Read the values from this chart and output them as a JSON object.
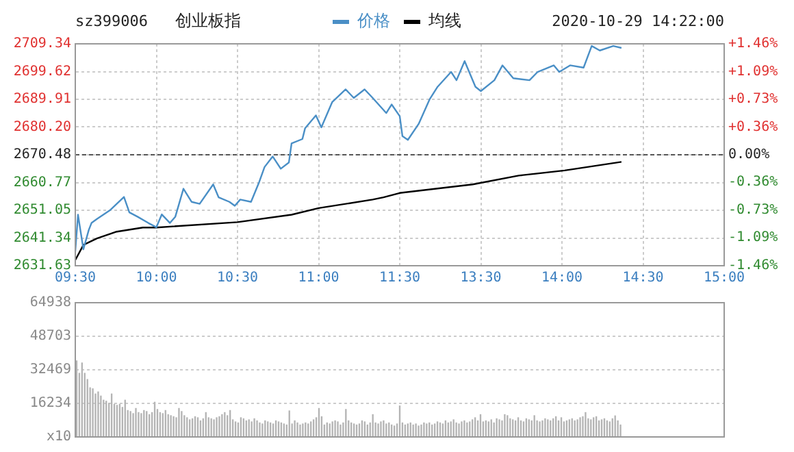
{
  "chart_data": [
    {
      "type": "line",
      "title": "创业板指",
      "subtitle": "sz399006",
      "annotations": [
        "2020-10-29 14:22:00"
      ],
      "legend": "top",
      "grid": true,
      "categories": [
        "09:30",
        null,
        null,
        null,
        null,
        null,
        null,
        null,
        null,
        null,
        null,
        null,
        null,
        null,
        null,
        null,
        null,
        null,
        null,
        null,
        null,
        null,
        null,
        null,
        null,
        null,
        null,
        null,
        null,
        null,
        "10:00",
        null,
        null,
        null,
        null,
        null,
        null,
        null,
        null,
        null,
        null,
        null,
        null,
        null,
        null,
        null,
        null,
        null,
        null,
        null,
        null,
        null,
        null,
        null,
        null,
        null,
        null,
        null,
        null,
        null,
        "10:30",
        null,
        null,
        null,
        null,
        null,
        null,
        null,
        null,
        null,
        null,
        null,
        null,
        null,
        null,
        null,
        null,
        null,
        null,
        null,
        null,
        null,
        null,
        null,
        null,
        null,
        null,
        null,
        null,
        null,
        "11:00",
        null,
        null,
        null,
        null,
        null,
        null,
        null,
        null,
        null,
        null,
        null,
        null,
        null,
        null,
        null,
        null,
        null,
        null,
        null,
        null,
        null,
        null,
        null,
        null,
        null,
        null,
        null,
        null,
        null,
        "11:30",
        null,
        null,
        null,
        null,
        null,
        null,
        null,
        null,
        null,
        null,
        null,
        null,
        null,
        null,
        null,
        null,
        null,
        null,
        null,
        null,
        null,
        null,
        null,
        null,
        null,
        null,
        null,
        null,
        null,
        "13:30",
        null,
        null,
        null,
        null,
        null,
        null,
        null,
        null,
        null,
        null,
        null,
        null,
        null,
        null,
        null,
        null,
        null,
        null,
        null,
        null,
        null,
        null,
        null,
        null,
        null,
        null,
        null,
        null,
        null,
        "14:00",
        null,
        null,
        null,
        null,
        null,
        null,
        null,
        null,
        null,
        null,
        null,
        null,
        null,
        null,
        null,
        null,
        null,
        null,
        null,
        null,
        null,
        null,
        null,
        null,
        null,
        null,
        null,
        null,
        null,
        "14:30",
        null,
        null,
        null,
        null,
        null,
        null,
        null,
        null,
        null,
        null,
        null,
        null,
        null,
        null,
        null,
        null,
        null,
        null,
        null,
        null,
        null,
        null,
        null,
        null,
        null,
        null,
        null,
        null,
        null,
        "15:00"
      ],
      "ylim": [
        2631.63,
        2709.34
      ],
      "yticks": [
        2631.63,
        2641.34,
        2651.05,
        2660.77,
        2670.48,
        {
          "value": 2680.2,
          "label": "2680.20"
        },
        2689.91,
        2699.62,
        2709.34
      ],
      "y2lim": [
        -1.46,
        1.46
      ],
      "y2ticks": [
        {
          "value": -1.46,
          "label": "-1.46%"
        },
        {
          "value": -1.09,
          "label": "-1.09%"
        },
        {
          "value": -0.73,
          "label": "-0.73%"
        },
        {
          "value": -0.36,
          "label": "-0.36%"
        },
        {
          "value": 0,
          "label": "0.00%"
        },
        {
          "value": 0.36,
          "label": "+0.36%"
        },
        {
          "value": 0.73,
          "label": "+0.73%"
        },
        {
          "value": 1.09,
          "label": "+1.09%"
        },
        {
          "value": 1.46,
          "label": "+1.46%"
        }
      ],
      "ref_lines": [
        {
          "axis": "y",
          "value": 2670.48,
          "line_style": "dashed",
          "color": "#555555"
        }
      ],
      "series": [
        {
          "name": "价格",
          "color": "#4a8fc6",
          "values": [
            2636.6,
            2649.5,
            2643.4,
            2637.4,
            null,
            2644.2,
            2646.6,
            null,
            2648.0,
            null,
            null,
            null,
            null,
            2651.2,
            null,
            null,
            null,
            null,
            2655.7,
            null,
            2650.3,
            null,
            null,
            2648.8,
            null,
            null,
            null,
            2646.6,
            null,
            null,
            2645.1,
            null,
            2649.6,
            null,
            null,
            2646.6,
            null,
            2648.8,
            null,
            null,
            2658.6,
            null,
            null,
            2654.0,
            null,
            null,
            2653.3,
            null,
            null,
            null,
            null,
            2660.1,
            null,
            2655.6,
            null,
            null,
            null,
            2654.0,
            null,
            2652.6,
            null,
            2654.8,
            null,
            null,
            null,
            2654.0,
            null,
            null,
            2660.9,
            null,
            2666.2,
            null,
            null,
            2669.9,
            null,
            null,
            2665.6,
            null,
            null,
            2667.8,
            2674.5,
            null,
            null,
            null,
            2676.0,
            2679.8,
            null,
            null,
            null,
            2684.3,
            null,
            2680.1,
            null,
            null,
            null,
            2688.9,
            null,
            null,
            null,
            null,
            2693.4,
            null,
            null,
            2690.4,
            null,
            null,
            null,
            2693.4,
            null,
            null,
            2690.4,
            null,
            null,
            null,
            null,
            2685.1,
            null,
            2688.1,
            null,
            null,
            2684.0,
            2677.0,
            null,
            2675.7,
            null,
            null,
            null,
            2681.3,
            null,
            null,
            null,
            2689.8,
            null,
            null,
            2694.3,
            null,
            null,
            null,
            null,
            2699.5,
            null,
            2696.6,
            null,
            null,
            2703.3,
            null,
            null,
            null,
            2694.3,
            null,
            2692.8,
            null,
            null,
            null,
            null,
            2696.6,
            null,
            null,
            2701.8,
            null,
            null,
            null,
            2697.3,
            null,
            null,
            null,
            null,
            null,
            2696.6,
            null,
            null,
            2699.5,
            null,
            null,
            null,
            null,
            null,
            2701.8,
            null,
            2699.5,
            null,
            null,
            null,
            2701.8,
            null,
            null,
            null,
            null,
            2701.0,
            null,
            null,
            2708.6,
            null,
            null,
            2707.0,
            null,
            null,
            null,
            null,
            2708.6,
            null,
            null,
            2707.9,
            null,
            null,
            null,
            null,
            null,
            null,
            null,
            null,
            null,
            null,
            null,
            null,
            null,
            null,
            null,
            null,
            null,
            null,
            null,
            null,
            null,
            null,
            null,
            null,
            null,
            null,
            null,
            null,
            null,
            null,
            null,
            null,
            null,
            null,
            null,
            null,
            null,
            null
          ]
        },
        {
          "name": "均线",
          "color": "#000000",
          "values": [
            2633.6,
            null,
            null,
            2638.9,
            null,
            null,
            null,
            null,
            2641.2,
            null,
            null,
            null,
            null,
            null,
            null,
            2643.5,
            null,
            null,
            null,
            null,
            null,
            null,
            null,
            null,
            null,
            2645.0,
            null,
            null,
            null,
            null,
            2645.0,
            null,
            null,
            null,
            null,
            null,
            null,
            null,
            null,
            null,
            null,
            null,
            null,
            null,
            null,
            null,
            null,
            null,
            null,
            null,
            null,
            null,
            null,
            null,
            null,
            null,
            null,
            null,
            null,
            null,
            2646.9,
            null,
            null,
            null,
            null,
            null,
            null,
            null,
            null,
            null,
            null,
            null,
            null,
            null,
            null,
            null,
            null,
            null,
            null,
            null,
            2649.5,
            null,
            null,
            null,
            null,
            null,
            null,
            null,
            null,
            null,
            2651.8,
            null,
            null,
            null,
            null,
            null,
            null,
            null,
            null,
            null,
            null,
            null,
            null,
            null,
            null,
            null,
            null,
            null,
            null,
            null,
            2654.8,
            null,
            null,
            null,
            2655.6,
            null,
            null,
            null,
            null,
            null,
            2657.1,
            null,
            null,
            null,
            null,
            null,
            null,
            null,
            null,
            null,
            null,
            null,
            null,
            null,
            null,
            null,
            null,
            null,
            null,
            null,
            null,
            null,
            null,
            null,
            null,
            null,
            null,
            2660.1,
            null,
            null,
            null,
            null,
            null,
            null,
            null,
            null,
            null,
            null,
            null,
            null,
            null,
            null,
            null,
            null,
            2663.2,
            null,
            null,
            null,
            null,
            null,
            null,
            null,
            null,
            null,
            null,
            null,
            null,
            null,
            null,
            null,
            null,
            2665.0,
            null,
            null,
            null,
            null,
            null,
            null,
            null,
            null,
            null,
            null,
            null,
            null,
            null,
            null,
            null,
            null,
            null,
            null,
            null,
            null,
            2668.0,
            null,
            null,
            null,
            null,
            null,
            null,
            null,
            null,
            null,
            null,
            null,
            null,
            null,
            null,
            null,
            null,
            null,
            null,
            null,
            null,
            null,
            null,
            null,
            null,
            null,
            null,
            null,
            null,
            null,
            null,
            null,
            null,
            null,
            null,
            null,
            null,
            null,
            null
          ]
        }
      ]
    },
    {
      "type": "bar",
      "grid": "y",
      "tick_labels": "y",
      "categories": [
        null,
        null,
        null,
        null,
        null,
        null,
        null,
        null,
        null,
        null,
        null,
        null,
        null,
        null,
        null,
        null,
        null,
        null,
        null,
        null,
        null,
        null,
        null,
        null,
        null,
        null,
        null,
        null,
        null,
        null,
        null,
        null,
        null,
        null,
        null,
        null,
        null,
        null,
        null,
        null,
        null,
        null,
        null,
        null,
        null,
        null,
        null,
        null,
        null,
        null,
        null,
        null,
        null,
        null,
        null,
        null,
        null,
        null,
        null,
        null,
        null,
        null,
        null,
        null,
        null,
        null,
        null,
        null,
        null,
        null,
        null,
        null,
        null,
        null,
        null,
        null,
        null,
        null,
        null,
        null,
        null,
        null,
        null,
        null,
        null,
        null,
        null,
        null,
        null,
        null,
        null,
        null,
        null,
        null,
        null,
        null,
        null,
        null,
        null,
        null,
        null,
        null,
        null,
        null,
        null,
        null,
        null,
        null,
        null,
        null,
        null,
        null,
        null,
        null,
        null,
        null,
        null,
        null,
        null,
        null,
        null,
        null,
        null,
        null,
        null,
        null,
        null,
        null,
        null,
        null,
        null,
        null,
        null,
        null,
        null,
        null,
        null,
        null,
        null,
        null,
        null,
        null,
        null,
        null,
        null,
        null,
        null,
        null,
        null,
        null,
        null,
        null,
        null,
        null,
        null,
        null,
        null,
        null,
        null,
        null,
        null,
        null,
        null,
        null,
        null,
        null,
        null,
        null,
        null,
        null,
        null,
        null,
        null,
        null,
        null,
        null,
        null,
        null,
        null,
        null,
        null,
        null,
        null,
        null,
        null,
        null,
        null,
        null,
        null,
        null,
        null,
        null,
        null,
        null,
        null,
        null,
        null,
        null,
        null,
        null,
        null,
        null,
        null,
        null,
        null,
        null,
        null,
        null,
        null,
        null,
        null,
        null,
        null,
        null,
        null,
        null,
        null,
        null,
        null,
        null,
        null,
        null,
        null,
        null,
        null,
        null,
        null,
        null,
        null,
        null,
        null,
        null,
        null,
        null,
        null,
        null,
        null,
        null,
        null,
        null,
        null
      ],
      "ylim": [
        0,
        64938
      ],
      "yticks": [
        {
          "value": 0,
          "label": "x10"
        },
        16234,
        32469,
        48703,
        64938
      ],
      "series": [
        {
          "color": "#b4b4b4",
          "values": [
            37000,
            31000,
            36000,
            31000,
            28000,
            24000,
            23500,
            21000,
            22000,
            20000,
            18000,
            17500,
            16500,
            21000,
            16000,
            15500,
            16000,
            14500,
            18000,
            13000,
            12500,
            11500,
            14000,
            12000,
            11500,
            13000,
            12500,
            11000,
            12000,
            17000,
            13500,
            12000,
            11500,
            13000,
            11000,
            10500,
            10000,
            9500,
            14000,
            12500,
            10500,
            9500,
            8500,
            9000,
            10000,
            9500,
            8000,
            9000,
            12000,
            9500,
            9000,
            8500,
            9500,
            10000,
            11000,
            12000,
            10500,
            13000,
            8500,
            7500,
            7000,
            9500,
            9000,
            8000,
            8500,
            7500,
            9000,
            8000,
            7000,
            6500,
            8000,
            7500,
            7000,
            6500,
            8000,
            7500,
            7000,
            6500,
            6000,
            12800,
            6500,
            8000,
            7000,
            6000,
            6500,
            7000,
            6500,
            7500,
            8500,
            9500,
            14000,
            10000,
            6000,
            7000,
            6500,
            7500,
            8000,
            7500,
            6000,
            7000,
            13500,
            8000,
            7000,
            6500,
            6000,
            6500,
            8000,
            7500,
            6000,
            7000,
            11000,
            7000,
            6500,
            7500,
            8000,
            6500,
            7000,
            6000,
            5500,
            6500,
            15200,
            7000,
            6000,
            6500,
            7000,
            6000,
            6500,
            5500,
            6000,
            7000,
            6500,
            7000,
            6000,
            6500,
            7500,
            7000,
            6500,
            8000,
            7000,
            7500,
            8500,
            7000,
            6500,
            7500,
            8000,
            7000,
            7500,
            8500,
            9500,
            8000,
            11000,
            7500,
            8000,
            7500,
            8500,
            7000,
            9000,
            8500,
            8000,
            11000,
            10500,
            9000,
            8500,
            8000,
            9500,
            8000,
            7500,
            9000,
            8500,
            8000,
            10500,
            8000,
            7500,
            8000,
            9000,
            8500,
            8000,
            9000,
            10000,
            8000,
            9500,
            7500,
            8000,
            8500,
            9000,
            8000,
            8500,
            9500,
            10000,
            12000,
            9000,
            8500,
            9500,
            10000,
            8000,
            8500,
            9000,
            8000,
            7500,
            9000,
            10400,
            8000,
            6000,
            null,
            null,
            null,
            null,
            null,
            null,
            null,
            null,
            null,
            null,
            null,
            null,
            null,
            null,
            null,
            null,
            null,
            null,
            null,
            null,
            null,
            null,
            null,
            null,
            null,
            null,
            null,
            null,
            null,
            null,
            null,
            null,
            null,
            null,
            null,
            null,
            null,
            null
          ]
        }
      ]
    }
  ]
}
